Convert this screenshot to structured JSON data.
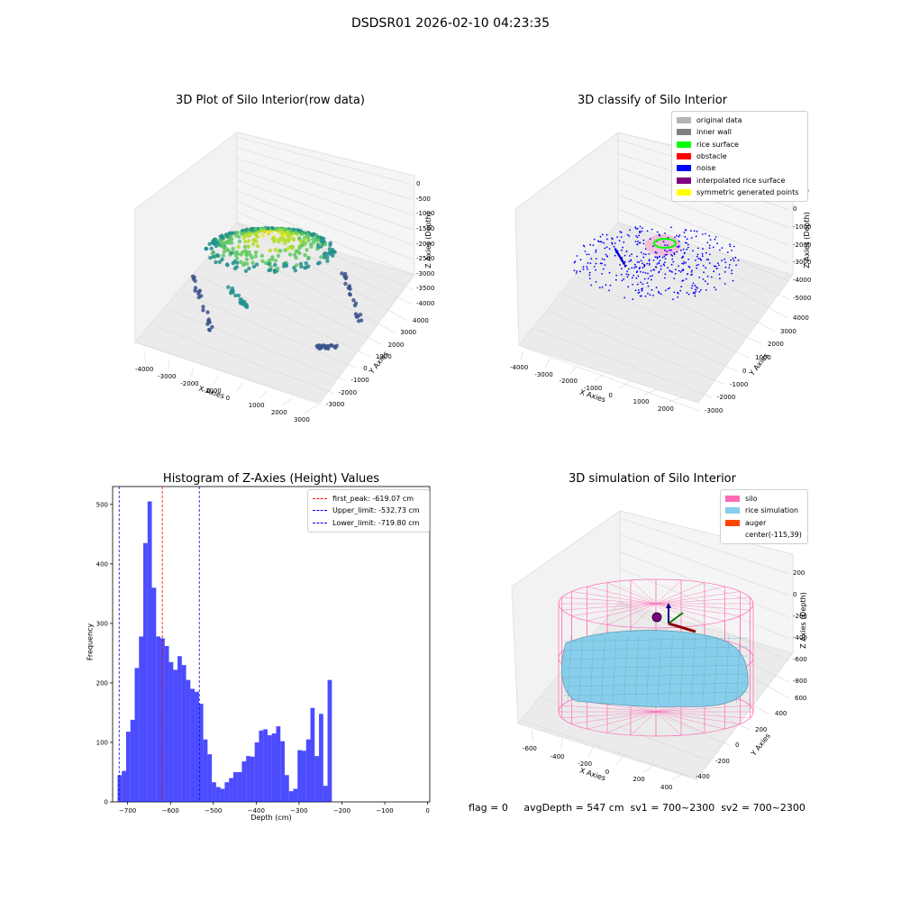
{
  "suptitle": "DSDSR01 2026-02-10 04:23:35",
  "status_line": "flag = 0     avgDepth = 547 cm  sv1 = 700~2300  sv2 = 700~2300",
  "chart_data": [
    {
      "type": "scatter",
      "dimension": "3d",
      "title": "3D Plot of Silo Interior(row data)",
      "xlabel": "X Axies",
      "ylabel": "Y Axies",
      "zlabel": "Z Axies (Depth)",
      "x_ticks": [
        "-4000",
        "-3000",
        "-2000",
        "-1000",
        "0",
        "1000",
        "2000",
        "3000"
      ],
      "y_ticks": [
        "-3000",
        "-2000",
        "-1000",
        "0",
        "1000",
        "2000",
        "3000",
        "4000"
      ],
      "z_ticks": [
        "0",
        "-500",
        "-1000",
        "-1500",
        "-2000",
        "-2500",
        "-3000",
        "-3500",
        "-4000"
      ],
      "colormap": "viridis",
      "grid": true
    },
    {
      "type": "scatter",
      "dimension": "3d",
      "title": "3D classify of Silo Interior",
      "xlabel": "X Axies",
      "ylabel": "Y Axies",
      "zlabel": "Z Axies (Depth)",
      "x_ticks": [
        "-4000",
        "-3000",
        "-2000",
        "-1000",
        "0",
        "1000",
        "2000"
      ],
      "y_ticks": [
        "-3000",
        "-2000",
        "-1000",
        "0",
        "1000",
        "2000",
        "3000",
        "4000"
      ],
      "z_ticks": [
        "1000",
        "0",
        "-1000",
        "-2000",
        "-3000",
        "-4000",
        "-5000"
      ],
      "legend_position": "top-right",
      "legend": [
        {
          "label": "original data",
          "color": "#b4b4b4"
        },
        {
          "label": "inner wall",
          "color": "#808080"
        },
        {
          "label": "rice surface",
          "color": "#00ff00"
        },
        {
          "label": "obstacle",
          "color": "#ff0000"
        },
        {
          "label": "noise",
          "color": "#0000ff"
        },
        {
          "label": "interpolated rice surface",
          "color": "#800080"
        },
        {
          "label": "symmetric generated points",
          "color": "#ffff00"
        }
      ],
      "grid": true
    },
    {
      "type": "bar",
      "title": "Histogram of Z-Axies (Height) Values",
      "xlabel": "Depth (cm)",
      "ylabel": "Frequency",
      "xlim": [
        -735,
        5
      ],
      "ylim": [
        0,
        530
      ],
      "x_ticks": [
        -700,
        -600,
        -500,
        -400,
        -300,
        -200,
        -100,
        0
      ],
      "y_ticks": [
        0,
        100,
        200,
        300,
        400,
        500
      ],
      "bin_start": -723.5,
      "bin_width": 10,
      "values": [
        45,
        52,
        118,
        138,
        225,
        278,
        435,
        505,
        360,
        278,
        275,
        262,
        235,
        222,
        245,
        230,
        205,
        190,
        185,
        165,
        105,
        80,
        33,
        25,
        22,
        33,
        40,
        50,
        50,
        68,
        77,
        76,
        100,
        120,
        122,
        112,
        115,
        127,
        102,
        45,
        18,
        22,
        87,
        86,
        105,
        158,
        77,
        148,
        27,
        205
      ],
      "bar_color": "#0000ff",
      "vlines": [
        {
          "label": "first_peak: -619.07 cm",
          "x": -619.07,
          "color": "#ff0000"
        },
        {
          "label": "Upper_limit: -532.73 cm",
          "x": -532.73,
          "color": "#0000ff"
        },
        {
          "label": "Lower_limit: -719.80 cm",
          "x": -719.8,
          "color": "#0000ff"
        }
      ],
      "legend_position": "top-right",
      "grid": false
    },
    {
      "type": "surface",
      "dimension": "3d",
      "title": "3D simulation of Silo Interior",
      "xlabel": "X Axies",
      "ylabel": "Y Axies",
      "zlabel": "Z Axies (Depth)",
      "x_ticks": [
        "-600",
        "-400",
        "-200",
        "0",
        "200",
        "400"
      ],
      "y_ticks": [
        "-400",
        "-200",
        "0",
        "200",
        "400",
        "600"
      ],
      "z_ticks": [
        "200",
        "0",
        "-200",
        "-400",
        "-600",
        "-800"
      ],
      "legend_position": "top-right",
      "legend": [
        {
          "label": "silo",
          "color": "#ff69b4"
        },
        {
          "label": "rice simulation",
          "color": "#87ceeb"
        },
        {
          "label": "auger",
          "color": "#ff4500"
        },
        {
          "label": "center(-115,39)",
          "color": ""
        }
      ],
      "grid": true
    }
  ]
}
